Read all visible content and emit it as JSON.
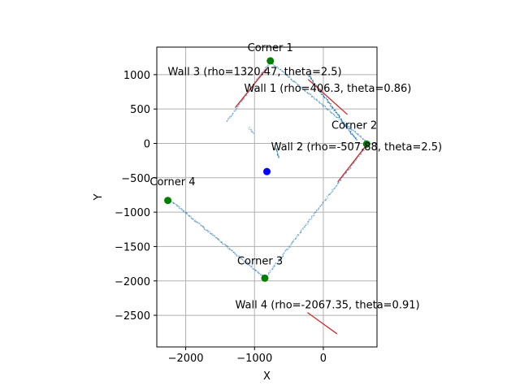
{
  "chart_data": {
    "type": "scatter",
    "title": "",
    "xlabel": "X",
    "ylabel": "Y",
    "xlim": [
      -2420,
      780
    ],
    "ylim": [
      -2960,
      1400
    ],
    "grid": true,
    "x_ticks": [
      -2000,
      -1000,
      0
    ],
    "x_tick_labels": [
      "−2000",
      "−1000",
      "0"
    ],
    "y_ticks": [
      -2500,
      -2000,
      -1500,
      -1000,
      -500,
      0,
      500,
      1000
    ],
    "y_tick_labels": [
      "−2500",
      "−2000",
      "−1500",
      "−1000",
      "−500",
      "0",
      "500",
      "1000"
    ],
    "colors": {
      "scan": "#1f77b4",
      "wall": "#d62728",
      "corner": "#008000",
      "robot": "#0000ff",
      "grid": "#b0b0b0"
    },
    "scan_segments": [
      {
        "from": [
          -1400,
          320
        ],
        "to": [
          -760,
          1200
        ],
        "n": 70,
        "alpha": 0.5
      },
      {
        "from": [
          -760,
          1180
        ],
        "to": [
          650,
          10
        ],
        "n": 140,
        "alpha": 0.5
      },
      {
        "from": [
          -220,
          1000
        ],
        "to": [
          480,
          50
        ],
        "n": 80,
        "alpha": 0.9
      },
      {
        "from": [
          650,
          -10
        ],
        "to": [
          -830,
          -1940
        ],
        "n": 160,
        "alpha": 0.5
      },
      {
        "from": [
          -2230,
          -820
        ],
        "to": [
          -830,
          -1970
        ],
        "n": 150,
        "alpha": 0.5
      },
      {
        "from": [
          -1080,
          230
        ],
        "to": [
          -1020,
          150
        ],
        "n": 8,
        "alpha": 0.5
      },
      {
        "from": [
          -680,
          -70
        ],
        "to": [
          -650,
          -200
        ],
        "n": 10,
        "alpha": 0.9
      }
    ],
    "walls": [
      {
        "label": "Wall 1 (rho=406.3, theta=0.86)",
        "from": [
          -220,
          930
        ],
        "to": [
          350,
          420
        ],
        "label_at": [
          -1150,
          750
        ]
      },
      {
        "label": "Wall 2 (rho=-507.88, theta=2.5)",
        "from": [
          630,
          -20
        ],
        "to": [
          210,
          -560
        ],
        "label_at": [
          -760,
          -100
        ]
      },
      {
        "label": "Wall 3 (rho=1320.47, theta=2.5)",
        "from": [
          -1280,
          520
        ],
        "to": [
          -830,
          1080
        ],
        "label_at": [
          -2260,
          990
        ]
      },
      {
        "label": "Wall 4 (rho=-2067.35, theta=0.91)",
        "from": [
          -230,
          -2460
        ],
        "to": [
          200,
          -2770
        ],
        "label_at": [
          -1280,
          -2400
        ]
      }
    ],
    "corners": [
      {
        "label": "Corner 1",
        "x": -770,
        "y": 1200,
        "label_at": [
          -770,
          1340
        ]
      },
      {
        "label": "Corner 2",
        "x": 630,
        "y": -10,
        "label_at": [
          450,
          210
        ]
      },
      {
        "label": "Corner 3",
        "x": -850,
        "y": -1960,
        "label_at": [
          -920,
          -1760
        ]
      },
      {
        "label": "Corner 4",
        "x": -2260,
        "y": -830,
        "label_at": [
          -2190,
          -610
        ]
      }
    ],
    "robot": {
      "x": -820,
      "y": -410
    }
  }
}
